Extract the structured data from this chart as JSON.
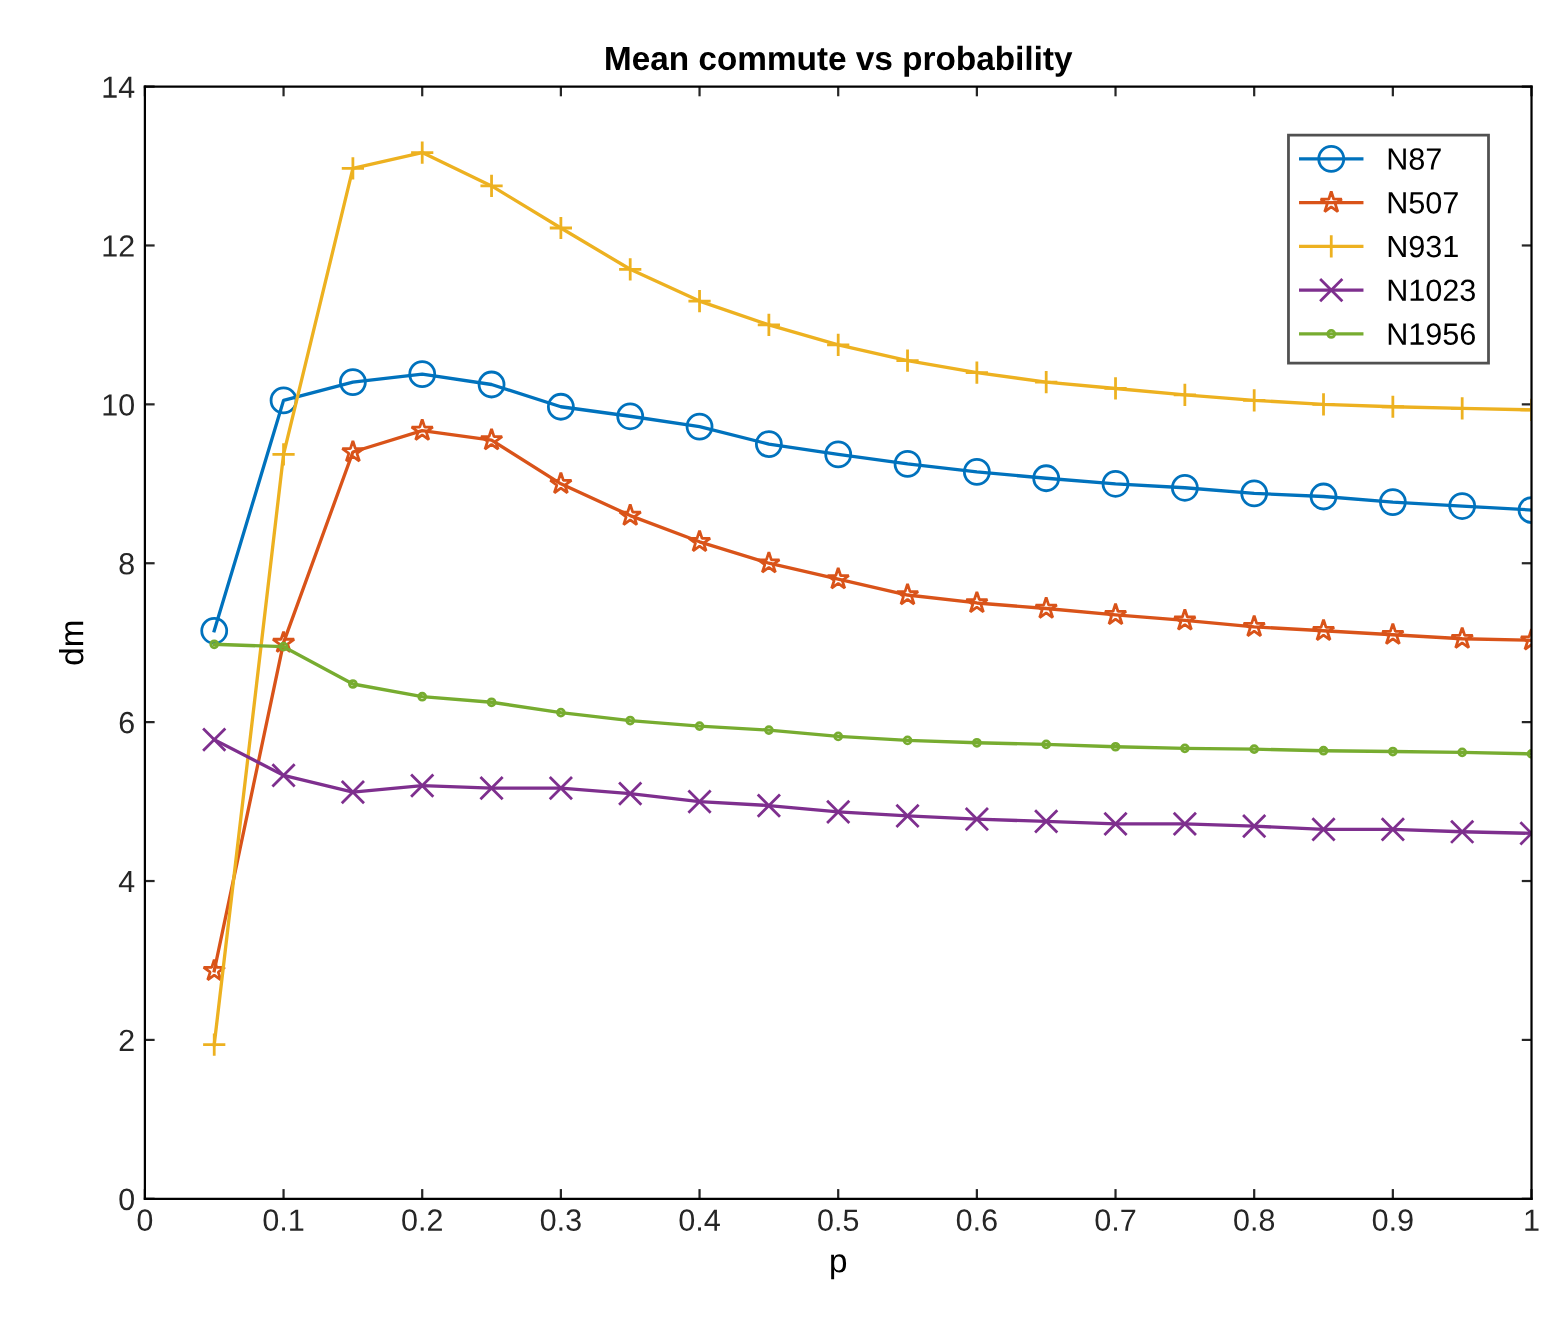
{
  "chart_data": {
    "type": "line",
    "title": "Mean commute vs probability",
    "xlabel": "p",
    "ylabel": "dm",
    "x": [
      0.05,
      0.1,
      0.15,
      0.2,
      0.25,
      0.3,
      0.35,
      0.4,
      0.45,
      0.5,
      0.55,
      0.6,
      0.65,
      0.7,
      0.75,
      0.8,
      0.85,
      0.9,
      0.95,
      1.0
    ],
    "series": [
      {
        "name": "N87",
        "color": "#0072bd",
        "marker": "circle",
        "values": [
          7.15,
          10.05,
          10.28,
          10.38,
          10.25,
          9.97,
          9.85,
          9.72,
          9.5,
          9.37,
          9.25,
          9.15,
          9.07,
          9.0,
          8.95,
          8.88,
          8.84,
          8.77,
          8.72,
          8.67
        ]
      },
      {
        "name": "N507",
        "color": "#d95319",
        "marker": "star",
        "values": [
          2.87,
          7.0,
          9.4,
          9.67,
          9.55,
          9.0,
          8.6,
          8.27,
          8.0,
          7.8,
          7.6,
          7.5,
          7.43,
          7.35,
          7.28,
          7.2,
          7.15,
          7.1,
          7.05,
          7.03
        ]
      },
      {
        "name": "N931",
        "color": "#edb120",
        "marker": "plus",
        "values": [
          1.94,
          9.37,
          12.97,
          13.17,
          12.75,
          12.22,
          11.7,
          11.3,
          11.0,
          10.75,
          10.55,
          10.4,
          10.28,
          10.2,
          10.12,
          10.05,
          10.0,
          9.97,
          9.95,
          9.93
        ]
      },
      {
        "name": "N1023",
        "color": "#7e2f8e",
        "marker": "cross",
        "values": [
          5.78,
          5.33,
          5.12,
          5.2,
          5.17,
          5.17,
          5.1,
          5.0,
          4.95,
          4.87,
          4.82,
          4.78,
          4.75,
          4.72,
          4.72,
          4.69,
          4.65,
          4.65,
          4.62,
          4.6
        ]
      },
      {
        "name": "N1956",
        "color": "#77ac30",
        "marker": "point",
        "values": [
          6.98,
          6.95,
          6.48,
          6.32,
          6.25,
          6.12,
          6.02,
          5.95,
          5.9,
          5.82,
          5.77,
          5.74,
          5.72,
          5.69,
          5.67,
          5.66,
          5.64,
          5.63,
          5.62,
          5.6
        ]
      }
    ],
    "xlim": [
      0,
      1
    ],
    "xticks": [
      0,
      0.1,
      0.2,
      0.3,
      0.4,
      0.5,
      0.6,
      0.7,
      0.8,
      0.9,
      1
    ],
    "ylim": [
      0,
      14
    ],
    "yticks": [
      0,
      2,
      4,
      6,
      8,
      10,
      12,
      14
    ],
    "legend": "top right",
    "line_style": "solid",
    "grid": false
  }
}
